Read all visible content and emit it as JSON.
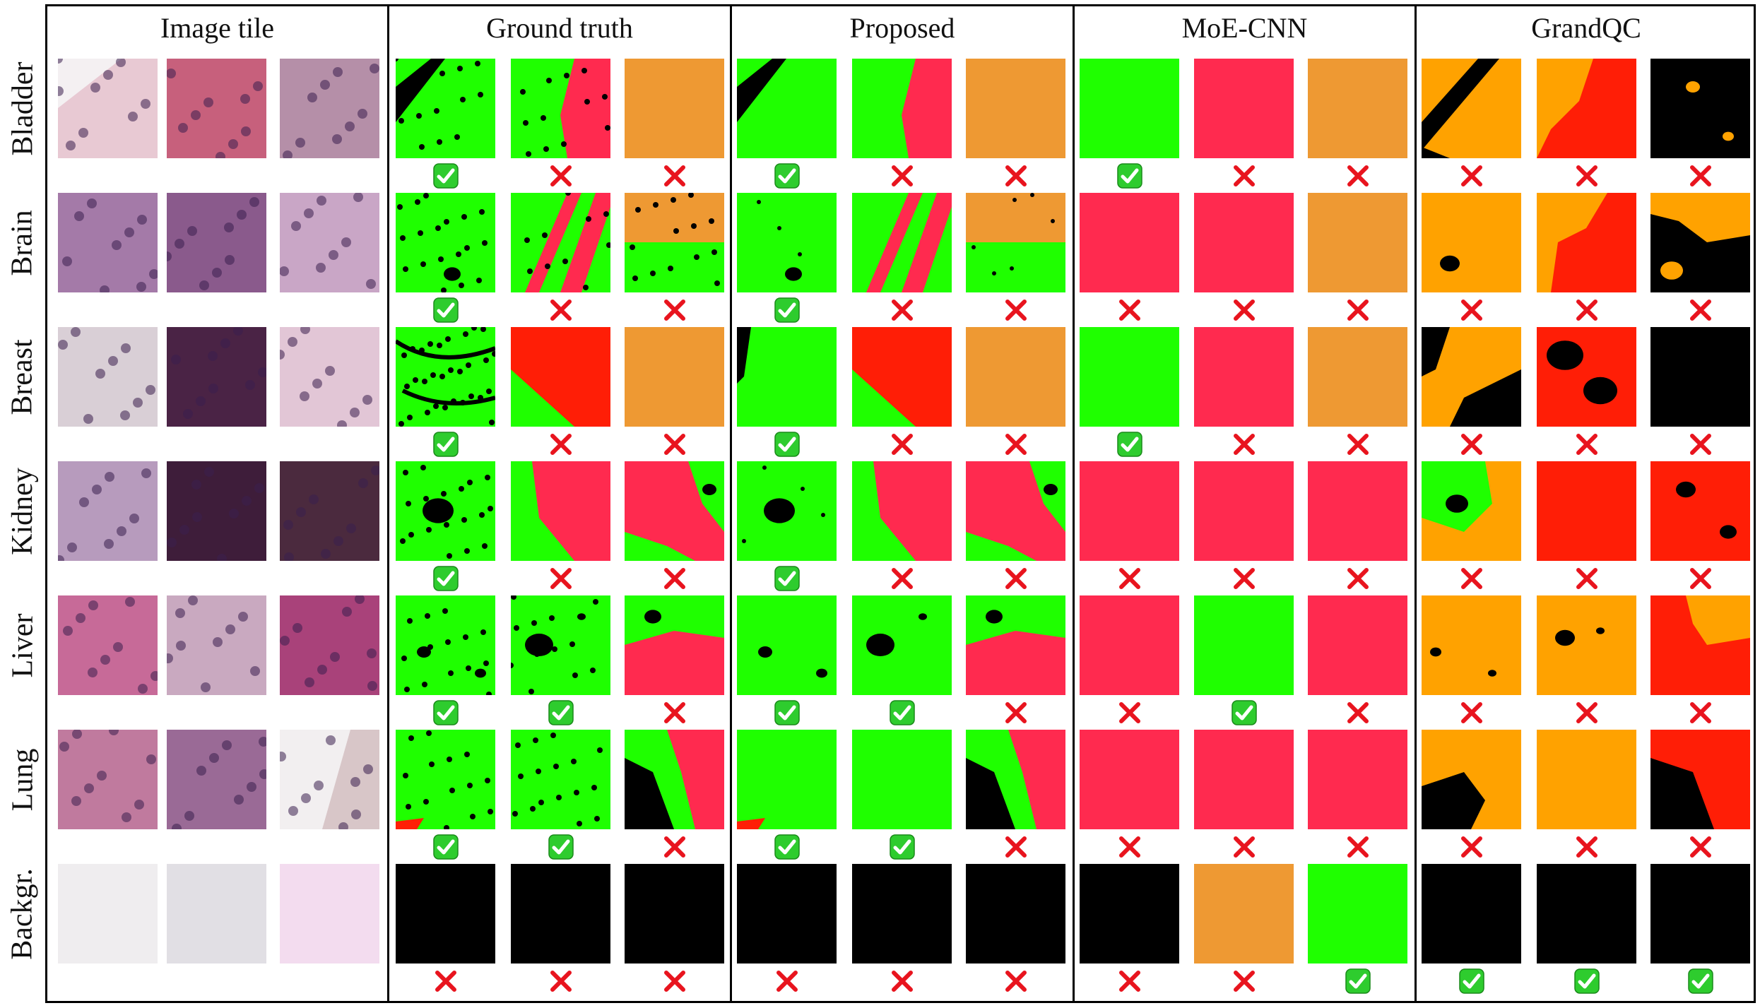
{
  "headers": [
    "Image tile",
    "Ground truth",
    "Proposed",
    "MoE-CNN",
    "GrandQC"
  ],
  "rows": [
    "Bladder",
    "Brain",
    "Breast",
    "Kidney",
    "Liver",
    "Lung",
    "Backgr."
  ],
  "icons": {
    "correct": "check-mark-icon",
    "incorrect": "cross-mark-icon"
  },
  "colors": {
    "green": "#1fff00",
    "pink": "#ff2a4f",
    "red": "#ff1e06",
    "orange_light": "#ee9933",
    "orange": "#ffa200",
    "black": "#000000",
    "check_bg": "#2ecc2e",
    "cross": "#e8141e"
  },
  "marks": {
    "ground_truth": [
      [
        "correct",
        "incorrect",
        "incorrect"
      ],
      [
        "correct",
        "incorrect",
        "incorrect"
      ],
      [
        "correct",
        "incorrect",
        "incorrect"
      ],
      [
        "correct",
        "incorrect",
        "incorrect"
      ],
      [
        "correct",
        "correct",
        "incorrect"
      ],
      [
        "correct",
        "correct",
        "incorrect"
      ],
      [
        "incorrect",
        "incorrect",
        "incorrect"
      ]
    ],
    "proposed": [
      [
        "correct",
        "incorrect",
        "incorrect"
      ],
      [
        "correct",
        "incorrect",
        "incorrect"
      ],
      [
        "correct",
        "incorrect",
        "incorrect"
      ],
      [
        "correct",
        "incorrect",
        "incorrect"
      ],
      [
        "correct",
        "correct",
        "incorrect"
      ],
      [
        "correct",
        "correct",
        "incorrect"
      ],
      [
        "incorrect",
        "incorrect",
        "incorrect"
      ]
    ],
    "moe_cnn": [
      [
        "correct",
        "incorrect",
        "incorrect"
      ],
      [
        "incorrect",
        "incorrect",
        "incorrect"
      ],
      [
        "correct",
        "incorrect",
        "incorrect"
      ],
      [
        "incorrect",
        "incorrect",
        "incorrect"
      ],
      [
        "incorrect",
        "correct",
        "incorrect"
      ],
      [
        "incorrect",
        "incorrect",
        "incorrect"
      ],
      [
        "incorrect",
        "incorrect",
        "correct"
      ]
    ],
    "grandqc": [
      [
        "incorrect",
        "incorrect",
        "incorrect"
      ],
      [
        "incorrect",
        "incorrect",
        "incorrect"
      ],
      [
        "incorrect",
        "incorrect",
        "incorrect"
      ],
      [
        "incorrect",
        "incorrect",
        "incorrect"
      ],
      [
        "incorrect",
        "incorrect",
        "incorrect"
      ],
      [
        "incorrect",
        "incorrect",
        "incorrect"
      ],
      [
        "correct",
        "correct",
        "correct"
      ]
    ]
  },
  "moe_cnn_fills": [
    [
      "green",
      "pink",
      "orange_light"
    ],
    [
      "pink",
      "pink",
      "orange_light"
    ],
    [
      "green",
      "pink",
      "orange_light"
    ],
    [
      "pink",
      "pink",
      "pink"
    ],
    [
      "pink",
      "green",
      "pink"
    ],
    [
      "pink",
      "pink",
      "pink"
    ],
    [
      "black",
      "orange_light",
      "green"
    ]
  ]
}
